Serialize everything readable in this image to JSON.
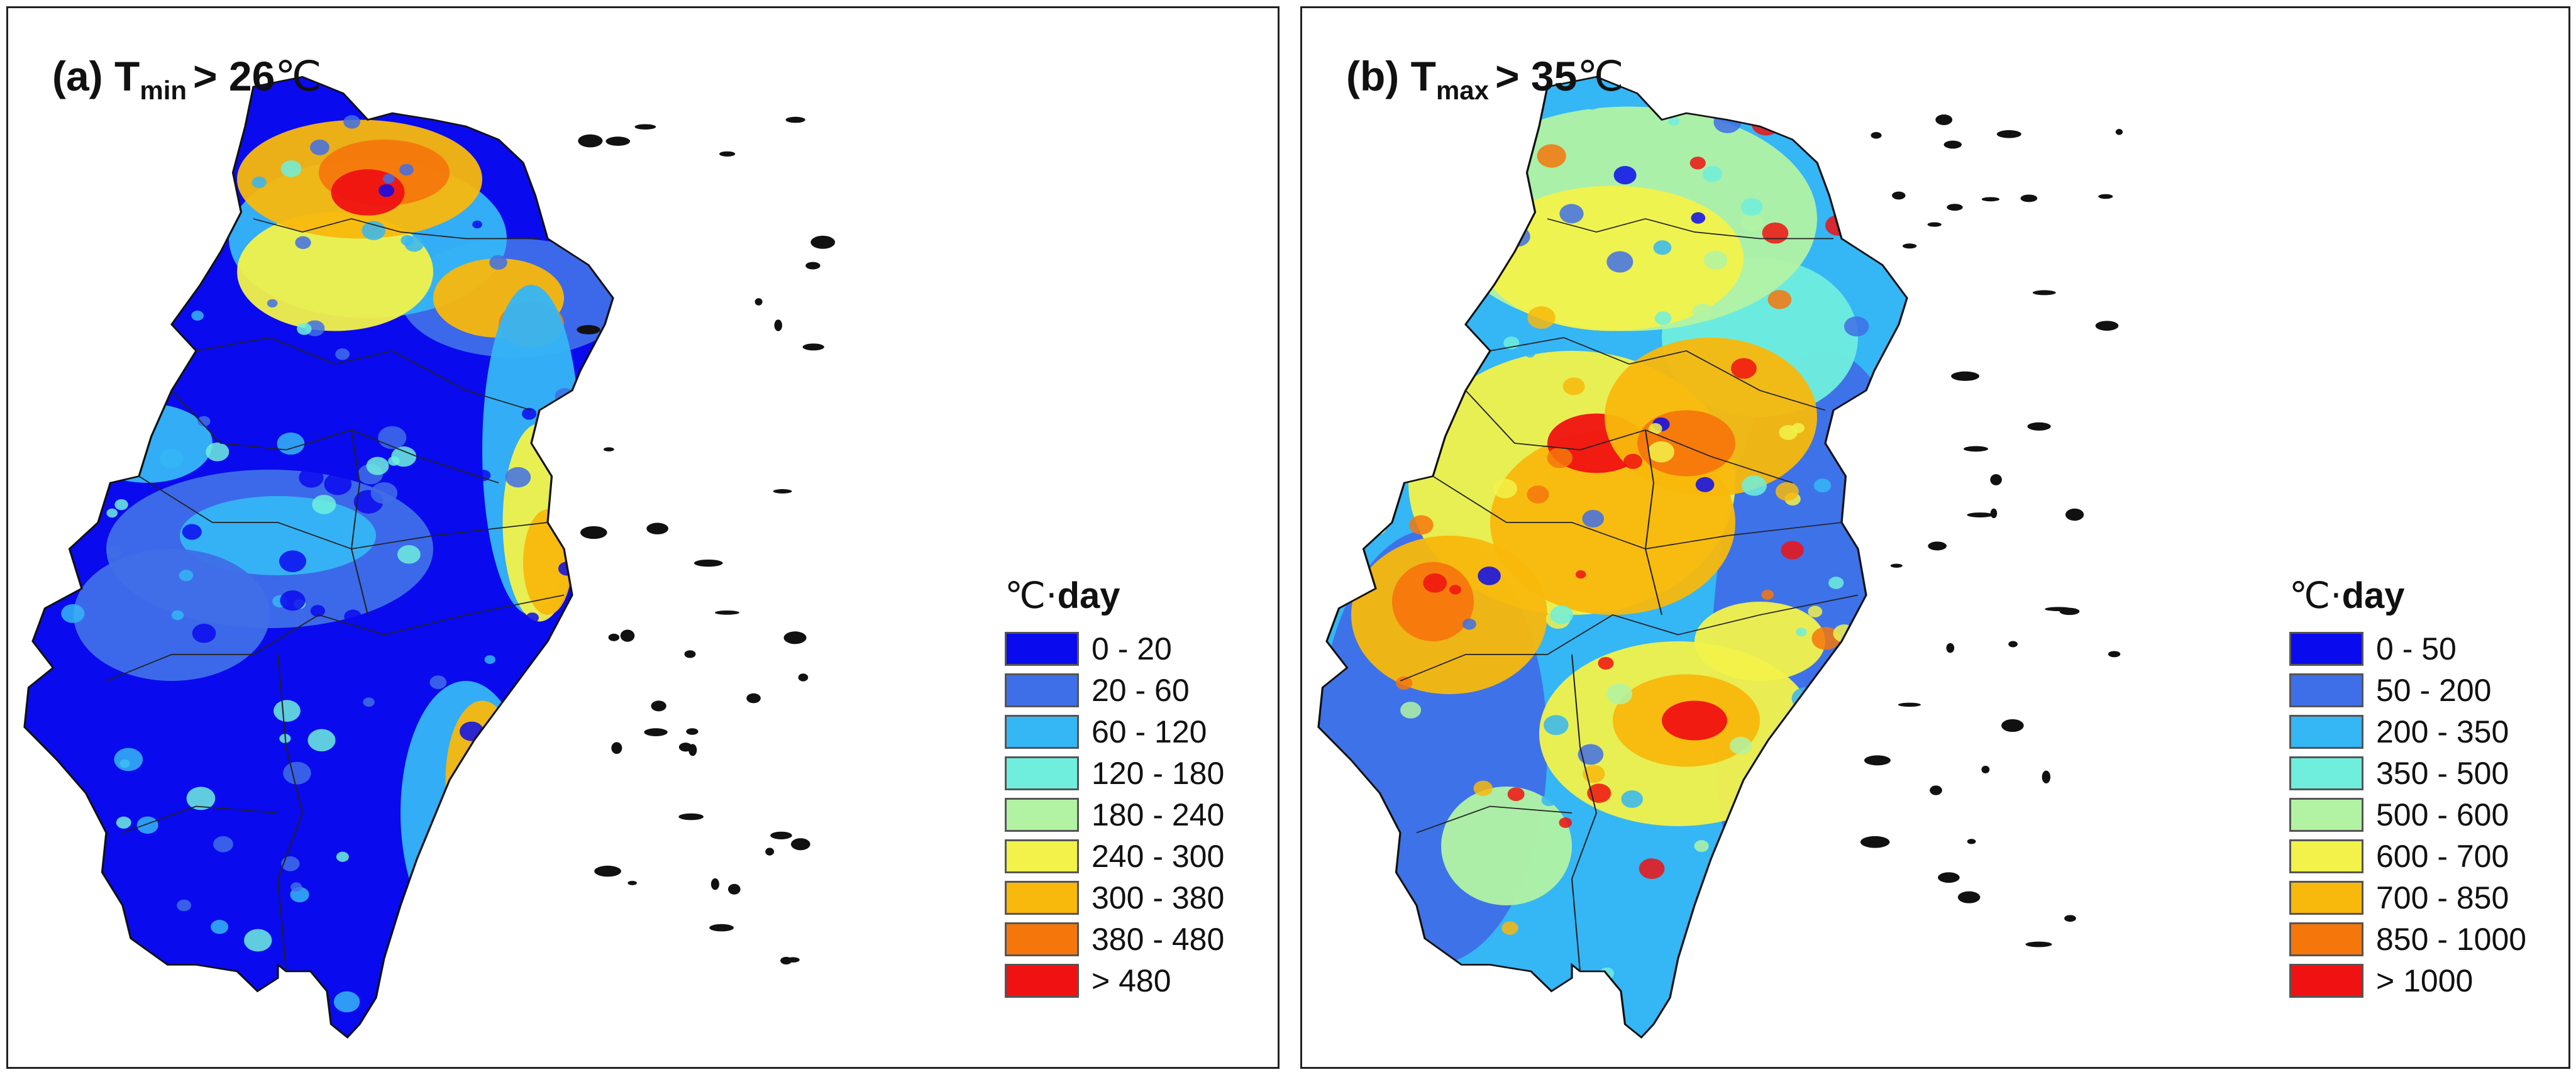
{
  "panels": [
    {
      "label": "(a)",
      "variable": "T",
      "subscript": "min",
      "threshold": "> 26",
      "unit": "℃",
      "legend": {
        "unit": "℃·",
        "title": "day",
        "classes": [
          {
            "label": "0 - 20",
            "color": "#0a0aee"
          },
          {
            "label": "20 - 60",
            "color": "#3f6fe8"
          },
          {
            "label": "60 - 120",
            "color": "#35b6f5"
          },
          {
            "label": "120 - 180",
            "color": "#6feedd"
          },
          {
            "label": "180 - 240",
            "color": "#b2f3a3"
          },
          {
            "label": "240 - 300",
            "color": "#f2f24a"
          },
          {
            "label": "300 - 380",
            "color": "#f8b80c"
          },
          {
            "label": "380 - 480",
            "color": "#f5770c"
          },
          {
            "label": "> 480",
            "color": "#f01212"
          }
        ]
      }
    },
    {
      "label": "(b)",
      "variable": "T",
      "subscript": "max",
      "threshold": "> 35",
      "unit": "℃",
      "legend": {
        "unit": "℃·",
        "title": "day",
        "classes": [
          {
            "label": "0 - 50",
            "color": "#0a0aee"
          },
          {
            "label": "50 - 200",
            "color": "#3f6fe8"
          },
          {
            "label": "200 - 350",
            "color": "#35b6f5"
          },
          {
            "label": "350 - 500",
            "color": "#6feedd"
          },
          {
            "label": "500 - 600",
            "color": "#b2f3a3"
          },
          {
            "label": "600 - 700",
            "color": "#f2f24a"
          },
          {
            "label": "700 - 850",
            "color": "#f8b80c"
          },
          {
            "label": "850 - 1000",
            "color": "#f5770c"
          },
          {
            "label": "> 1000",
            "color": "#f01212"
          }
        ]
      }
    }
  ]
}
